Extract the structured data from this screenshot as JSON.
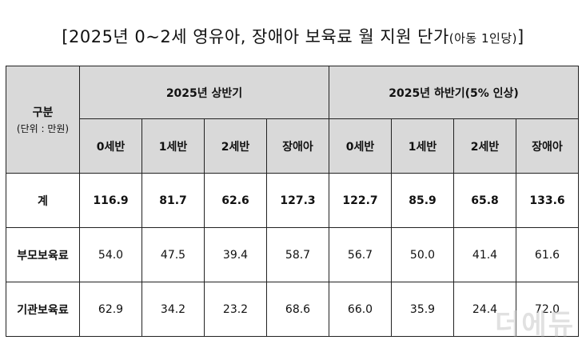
{
  "title": {
    "main": "[2025년 0~2세 영유아, 장애아 보육료 월 지원 단가",
    "sub": "(아동 1인당)",
    "close": "]"
  },
  "table": {
    "corner_label": "구분",
    "corner_unit": "(단위 : 만원)",
    "period_headers": [
      "2025년 상반기",
      "2025년 하반기(5% 인상)"
    ],
    "sub_headers": [
      "0세반",
      "1세반",
      "2세반",
      "장애아",
      "0세반",
      "1세반",
      "2세반",
      "장애아"
    ],
    "rows": [
      {
        "label": "계",
        "values": [
          "116.9",
          "81.7",
          "62.6",
          "127.3",
          "122.7",
          "85.9",
          "65.8",
          "133.6"
        ]
      },
      {
        "label": "부모보육료",
        "values": [
          "54.0",
          "47.5",
          "39.4",
          "58.7",
          "56.7",
          "50.0",
          "41.4",
          "61.6"
        ]
      },
      {
        "label": "기관보육료",
        "values": [
          "62.9",
          "34.2",
          "23.2",
          "68.6",
          "66.0",
          "35.9",
          "24.4",
          "72.0"
        ]
      }
    ]
  },
  "watermark": "더에듀"
}
